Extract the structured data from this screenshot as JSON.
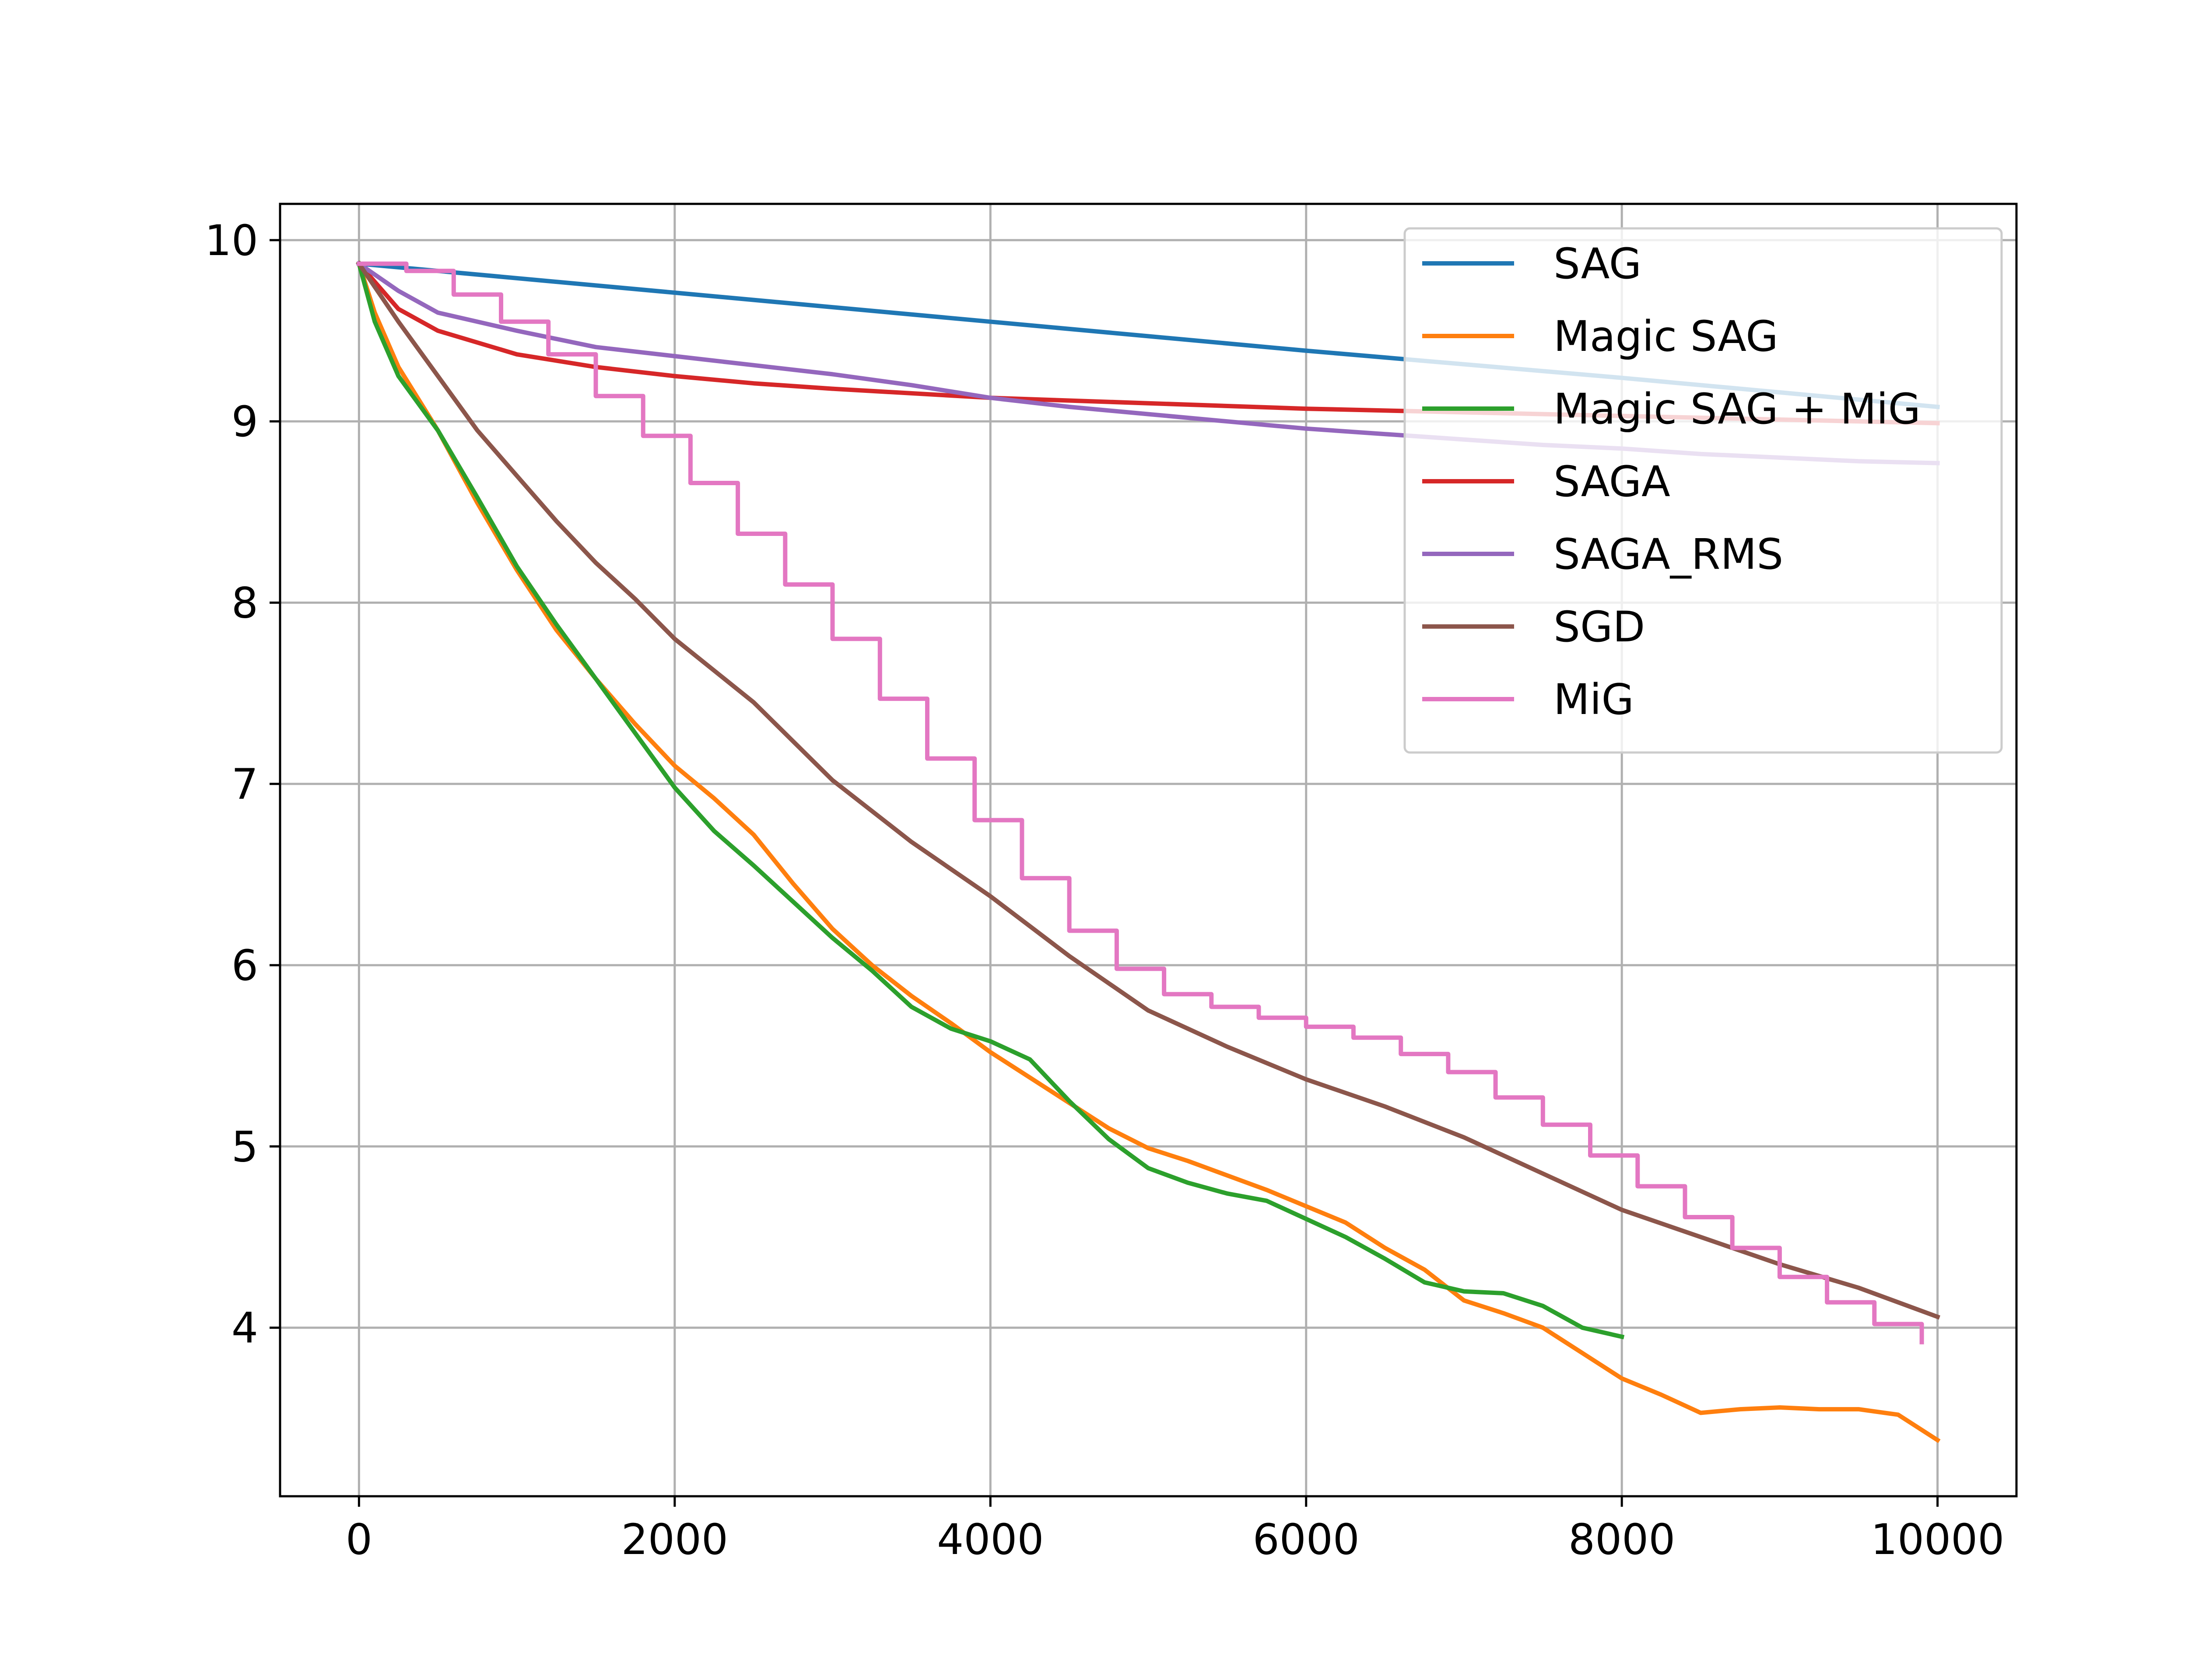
{
  "chart_data": {
    "type": "line",
    "title": "",
    "xlabel": "",
    "ylabel": "",
    "xlim": [
      -500,
      10500
    ],
    "ylim": [
      3.07,
      10.2
    ],
    "xticks": [
      0,
      2000,
      4000,
      6000,
      8000,
      10000
    ],
    "yticks": [
      4,
      5,
      6,
      7,
      8,
      9,
      10
    ],
    "grid": true,
    "legend_position": "top-right",
    "series": [
      {
        "name": "SAG",
        "color": "#1f77b4",
        "step": false,
        "x": [
          0,
          2000,
          4000,
          6000,
          8000,
          10000
        ],
        "y": [
          9.87,
          9.71,
          9.55,
          9.39,
          9.24,
          9.08
        ]
      },
      {
        "name": "Magic SAG",
        "color": "#ff7f0e",
        "step": false,
        "x": [
          0,
          100,
          250,
          500,
          750,
          1000,
          1250,
          1500,
          1750,
          2000,
          2250,
          2500,
          2750,
          3000,
          3250,
          3500,
          3750,
          4000,
          4250,
          4500,
          4750,
          5000,
          5250,
          5500,
          5750,
          6000,
          6250,
          6500,
          6750,
          7000,
          7250,
          7500,
          7750,
          8000,
          8250,
          8500,
          8750,
          9000,
          9250,
          9500,
          9750,
          10000
        ],
        "y": [
          9.87,
          9.6,
          9.3,
          8.95,
          8.55,
          8.18,
          7.85,
          7.58,
          7.33,
          7.1,
          6.92,
          6.72,
          6.45,
          6.2,
          6.0,
          5.83,
          5.68,
          5.52,
          5.38,
          5.24,
          5.1,
          4.99,
          4.92,
          4.84,
          4.76,
          4.67,
          4.58,
          4.44,
          4.32,
          4.15,
          4.08,
          4.0,
          3.86,
          3.72,
          3.63,
          3.53,
          3.55,
          3.56,
          3.55,
          3.55,
          3.52,
          3.38
        ]
      },
      {
        "name": "Magic SAG + MiG",
        "color": "#2ca02c",
        "step": false,
        "x": [
          0,
          100,
          250,
          500,
          750,
          1000,
          1250,
          1500,
          1750,
          2000,
          2250,
          2500,
          2750,
          3000,
          3250,
          3500,
          3750,
          4000,
          4250,
          4500,
          4750,
          5000,
          5250,
          5500,
          5750,
          6000,
          6250,
          6500,
          6750,
          7000,
          7250,
          7500,
          7750,
          8000
        ],
        "y": [
          9.87,
          9.55,
          9.25,
          8.95,
          8.58,
          8.2,
          7.88,
          7.58,
          7.28,
          6.98,
          6.74,
          6.55,
          6.35,
          6.15,
          5.97,
          5.77,
          5.65,
          5.58,
          5.48,
          5.25,
          5.04,
          4.88,
          4.8,
          4.74,
          4.7,
          4.6,
          4.5,
          4.38,
          4.25,
          4.2,
          4.19,
          4.12,
          4.0,
          3.95
        ]
      },
      {
        "name": "SAGA",
        "color": "#d62728",
        "step": false,
        "x": [
          0,
          250,
          500,
          1000,
          1500,
          2000,
          2500,
          3000,
          4000,
          5000,
          6000,
          7000,
          8000,
          9000,
          10000
        ],
        "y": [
          9.87,
          9.62,
          9.5,
          9.37,
          9.3,
          9.25,
          9.21,
          9.18,
          9.13,
          9.1,
          9.07,
          9.05,
          9.03,
          9.01,
          8.99
        ]
      },
      {
        "name": "SAGA_RMS",
        "color": "#9467bd",
        "step": false,
        "x": [
          0,
          250,
          500,
          1000,
          1500,
          2000,
          2500,
          3000,
          3500,
          4000,
          4500,
          5000,
          5500,
          6000,
          6500,
          7000,
          7500,
          8000,
          8500,
          9000,
          9500,
          10000
        ],
        "y": [
          9.87,
          9.72,
          9.6,
          9.5,
          9.41,
          9.36,
          9.31,
          9.26,
          9.2,
          9.13,
          9.08,
          9.04,
          9.0,
          8.96,
          8.93,
          8.9,
          8.87,
          8.85,
          8.82,
          8.8,
          8.78,
          8.77
        ]
      },
      {
        "name": "SGD",
        "color": "#8c564b",
        "step": false,
        "x": [
          0,
          250,
          500,
          750,
          1000,
          1250,
          1500,
          1750,
          2000,
          2500,
          3000,
          3500,
          4000,
          4500,
          5000,
          5500,
          6000,
          6500,
          7000,
          7500,
          8000,
          8500,
          9000,
          9500,
          10000
        ],
        "y": [
          9.87,
          9.55,
          9.25,
          8.95,
          8.7,
          8.45,
          8.22,
          8.02,
          7.8,
          7.45,
          7.02,
          6.68,
          6.38,
          6.05,
          5.75,
          5.55,
          5.37,
          5.22,
          5.05,
          4.85,
          4.65,
          4.5,
          4.35,
          4.22,
          4.06
        ]
      },
      {
        "name": "MiG",
        "color": "#e377c2",
        "step": true,
        "x": [
          0,
          300,
          600,
          900,
          1200,
          1500,
          1800,
          2100,
          2400,
          2700,
          3000,
          3300,
          3600,
          3900,
          4200,
          4500,
          4800,
          5100,
          5400,
          5700,
          6000,
          6300,
          6600,
          6900,
          7200,
          7500,
          7800,
          8100,
          8400,
          8700,
          9000,
          9300,
          9600,
          9900
        ],
        "y": [
          9.87,
          9.83,
          9.7,
          9.55,
          9.37,
          9.14,
          8.92,
          8.66,
          8.38,
          8.1,
          7.8,
          7.47,
          7.14,
          6.8,
          6.48,
          6.19,
          5.98,
          5.84,
          5.77,
          5.71,
          5.66,
          5.6,
          5.51,
          5.41,
          5.27,
          5.12,
          4.95,
          4.78,
          4.61,
          4.44,
          4.28,
          4.14,
          4.02,
          3.92
        ]
      }
    ]
  }
}
